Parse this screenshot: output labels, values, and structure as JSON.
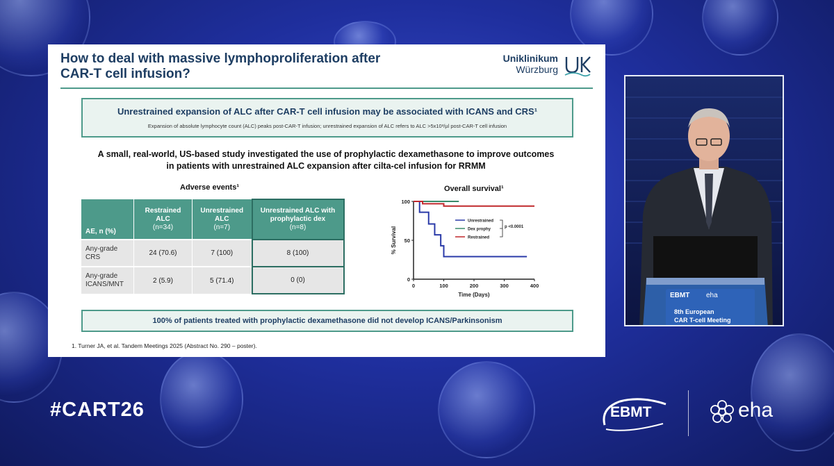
{
  "slide": {
    "title_line1": "How to deal with massive lymphoproliferation after",
    "title_line2": "CAR-T cell infusion?",
    "logo_name": "Uniklinikum",
    "logo_city": "Würzburg",
    "callout_heading": "Unrestrained expansion of ALC after CAR-T cell infusion may be associated with ICANS and CRS¹",
    "callout_sub": "Expansion of absolute lymphocyte count (ALC) peaks post-CAR-T infusion; unrestrained expansion of ALC refers to ALC >5x10³/µl post-CAR-T cell infusion",
    "study_line1": "A small, real-world, US-based study investigated the use of prophylactic dexamethasone to improve outcomes",
    "study_line2": "in patients with unrestrained ALC expansion after cilta-cel infusion for RRMM",
    "adverse_title": "Adverse events¹",
    "table": {
      "headers": [
        {
          "label": "AE, n (%)",
          "n": ""
        },
        {
          "label": "Restrained ALC",
          "n": "(n=34)"
        },
        {
          "label": "Unrestrained ALC",
          "n": "(n=7)"
        },
        {
          "label": "Unrestrained ALC with prophylactic dex",
          "n": "(n=8)"
        }
      ],
      "rows": [
        {
          "label": "Any-grade CRS",
          "values": [
            "24 (70.6)",
            "7 (100)",
            "8 (100)"
          ]
        },
        {
          "label": "Any-grade ICANS/MNT",
          "values": [
            "2 (5.9)",
            "5 (71.4)",
            "0 (0)"
          ]
        }
      ]
    },
    "os_title": "Overall survival¹",
    "bottom_callout": "100% of patients treated with prophylactic dexamethasone did not develop ICANS/Parkinsonism",
    "reference": "1. Turner JA, et al. Tandem Meetings 2025 (Abstract No. 290 – poster)."
  },
  "chart_data": {
    "type": "line",
    "title": "Overall survival¹",
    "xlabel": "Time (Days)",
    "ylabel": "% Survival",
    "xlim": [
      0,
      400
    ],
    "ylim": [
      0,
      100
    ],
    "x_ticks": [
      0,
      100,
      200,
      300,
      400
    ],
    "y_ticks": [
      0,
      50,
      100
    ],
    "legend_position": "center",
    "p_value": "p <0.0001",
    "series": [
      {
        "name": "Unrestrained",
        "color": "#2a3aa8",
        "points": [
          [
            0,
            100
          ],
          [
            20,
            100
          ],
          [
            20,
            86
          ],
          [
            50,
            86
          ],
          [
            50,
            71
          ],
          [
            70,
            71
          ],
          [
            70,
            57
          ],
          [
            90,
            57
          ],
          [
            90,
            43
          ],
          [
            100,
            43
          ],
          [
            100,
            29
          ],
          [
            375,
            29
          ]
        ]
      },
      {
        "name": "Dex prophy",
        "color": "#3a8a6a",
        "points": [
          [
            0,
            100
          ],
          [
            150,
            100
          ]
        ]
      },
      {
        "name": "Restrained",
        "color": "#c0282c",
        "points": [
          [
            0,
            100
          ],
          [
            30,
            100
          ],
          [
            30,
            97
          ],
          [
            100,
            97
          ],
          [
            100,
            94
          ],
          [
            400,
            94
          ]
        ]
      }
    ]
  },
  "video": {
    "podium_brand1": "EBMT",
    "podium_brand2": "eha",
    "podium_line1": "8th European",
    "podium_line2": "CAR T-cell Meeting"
  },
  "footer": {
    "hashtag": "#CART26",
    "ebmt": "EBMT",
    "eha": "eha"
  }
}
